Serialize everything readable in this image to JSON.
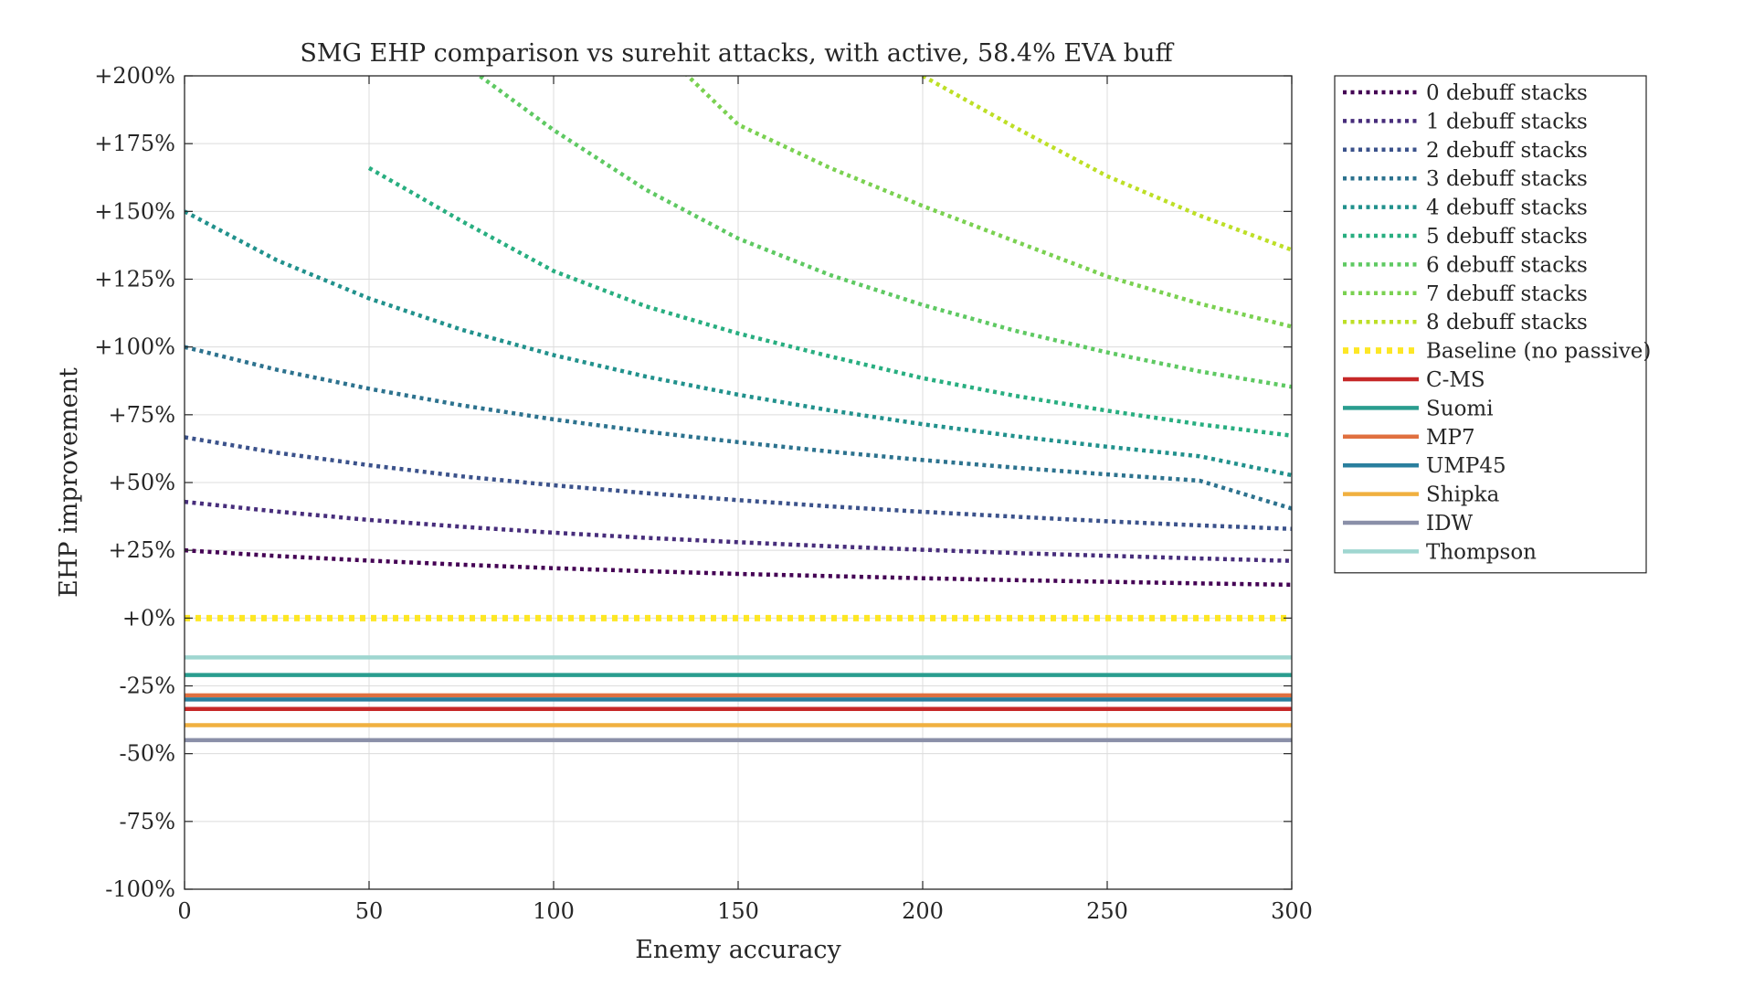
{
  "chart_data": {
    "type": "line",
    "title": "SMG EHP comparison vs surehit attacks, with active, 58.4% EVA buff",
    "xlabel": "Enemy accuracy",
    "ylabel": "EHP improvement",
    "xlim": [
      0,
      300
    ],
    "ylim": [
      -100,
      200
    ],
    "x_ticks": [
      0,
      50,
      100,
      150,
      200,
      250,
      300
    ],
    "y_ticks": [
      -100,
      -75,
      -50,
      -25,
      0,
      25,
      50,
      75,
      100,
      125,
      150,
      175,
      200
    ],
    "y_tick_labels": [
      "-100%",
      "-75%",
      "-50%",
      "-25%",
      "+0%",
      "+25%",
      "+50%",
      "+75%",
      "+100%",
      "+125%",
      "+150%",
      "+175%",
      "+200%"
    ],
    "x_tick_labels": [
      "0",
      "50",
      "100",
      "150",
      "200",
      "250",
      "300"
    ],
    "grid": true,
    "legend_position": "outside-right",
    "x": [
      0,
      25,
      50,
      75,
      100,
      125,
      150,
      175,
      200,
      225,
      250,
      275,
      300
    ],
    "series": [
      {
        "name": "0 debuff stacks",
        "style": "dotted",
        "color": "#440154",
        "values": [
          25,
          22.9,
          21.2,
          19.7,
          18.4,
          17.3,
          16.3,
          15.5,
          14.7,
          14.0,
          13.4,
          12.8,
          12.3
        ]
      },
      {
        "name": "1 debuff stacks",
        "style": "dotted",
        "color": "#472d7b",
        "values": [
          42.9,
          39.3,
          36.2,
          33.7,
          31.5,
          29.6,
          28.0,
          26.5,
          25.2,
          24.0,
          23.0,
          22.0,
          21.1
        ]
      },
      {
        "name": "2 debuff stacks",
        "style": "dotted",
        "color": "#3b528b",
        "values": [
          66.7,
          61.0,
          56.4,
          52.3,
          49.0,
          46.1,
          43.5,
          41.2,
          39.2,
          37.4,
          35.7,
          34.2,
          32.9
        ]
      },
      {
        "name": "3 debuff stacks",
        "style": "dotted",
        "color": "#2c728e",
        "values": [
          100,
          91.6,
          84.6,
          78.5,
          73.3,
          68.8,
          64.9,
          61.4,
          58.3,
          55.5,
          53.0,
          50.7,
          40.4
        ]
      },
      {
        "name": "4 debuff stacks",
        "style": "dotted",
        "color": "#21918c",
        "values": [
          150,
          132.0,
          117.9,
          106.4,
          97.0,
          89.1,
          82.4,
          76.6,
          71.5,
          67.1,
          63.2,
          59.7,
          52.7
        ]
      },
      {
        "name": "5 debuff stacks",
        "style": "dotted",
        "color": "#28ae80",
        "values": [
          null,
          null,
          166.0,
          146.5,
          128.0,
          115.0,
          105.0,
          96.5,
          88.5,
          82.0,
          76.5,
          71.5,
          67.3
        ]
      },
      {
        "name": "6 debuff stacks",
        "style": "dotted",
        "color": "#5ec962",
        "values": [
          null,
          null,
          null,
          205.0,
          180.0,
          158.0,
          140.0,
          126.5,
          115.5,
          106.0,
          98.0,
          91.0,
          85.3
        ]
      },
      {
        "name": "7 debuff stacks",
        "style": "dotted",
        "color": "#7ad151",
        "values": [
          null,
          null,
          null,
          null,
          null,
          215.0,
          182.0,
          166.0,
          152.0,
          139.0,
          126.0,
          116.0,
          107.5
        ]
      },
      {
        "name": "8 debuff stacks",
        "style": "dotted",
        "color": "#bddf26",
        "values": [
          null,
          null,
          null,
          null,
          null,
          null,
          null,
          null,
          200.0,
          181.0,
          163.0,
          148.5,
          135.8
        ]
      },
      {
        "name": "Baseline (no passive)",
        "style": "dotted-thick",
        "color": "#fde725",
        "values": [
          0,
          0,
          0,
          0,
          0,
          0,
          0,
          0,
          0,
          0,
          0,
          0,
          0
        ]
      },
      {
        "name": "C-MS",
        "style": "solid",
        "color": "#c62828",
        "values": [
          -33.5,
          -33.5,
          -33.5,
          -33.5,
          -33.5,
          -33.5,
          -33.5,
          -33.5,
          -33.5,
          -33.5,
          -33.5,
          -33.5,
          -33.5
        ]
      },
      {
        "name": "Suomi",
        "style": "solid",
        "color": "#2a9d8f",
        "values": [
          -21,
          -21,
          -21,
          -21,
          -21,
          -21,
          -21,
          -21,
          -21,
          -21,
          -21,
          -21,
          -21
        ]
      },
      {
        "name": "MP7",
        "style": "solid",
        "color": "#e07040",
        "values": [
          -28.5,
          -28.5,
          -28.5,
          -28.5,
          -28.5,
          -28.5,
          -28.5,
          -28.5,
          -28.5,
          -28.5,
          -28.5,
          -28.5,
          -28.5
        ]
      },
      {
        "name": "UMP45",
        "style": "solid",
        "color": "#2a7f9e",
        "values": [
          -30,
          -30,
          -30,
          -30,
          -30,
          -30,
          -30,
          -30,
          -30,
          -30,
          -30,
          -30,
          -30
        ]
      },
      {
        "name": "Shipka",
        "style": "solid",
        "color": "#f0b040",
        "values": [
          -39.5,
          -39.5,
          -39.5,
          -39.5,
          -39.5,
          -39.5,
          -39.5,
          -39.5,
          -39.5,
          -39.5,
          -39.5,
          -39.5,
          -39.5
        ]
      },
      {
        "name": "IDW",
        "style": "solid",
        "color": "#8a8fa8",
        "values": [
          -45,
          -45,
          -45,
          -45,
          -45,
          -45,
          -45,
          -45,
          -45,
          -45,
          -45,
          -45,
          -45
        ]
      },
      {
        "name": "Thompson",
        "style": "solid",
        "color": "#9fd6d0",
        "values": [
          -14.5,
          -14.5,
          -14.5,
          -14.5,
          -14.5,
          -14.5,
          -14.5,
          -14.5,
          -14.5,
          -14.5,
          -14.5,
          -14.5,
          -14.5
        ]
      }
    ]
  }
}
